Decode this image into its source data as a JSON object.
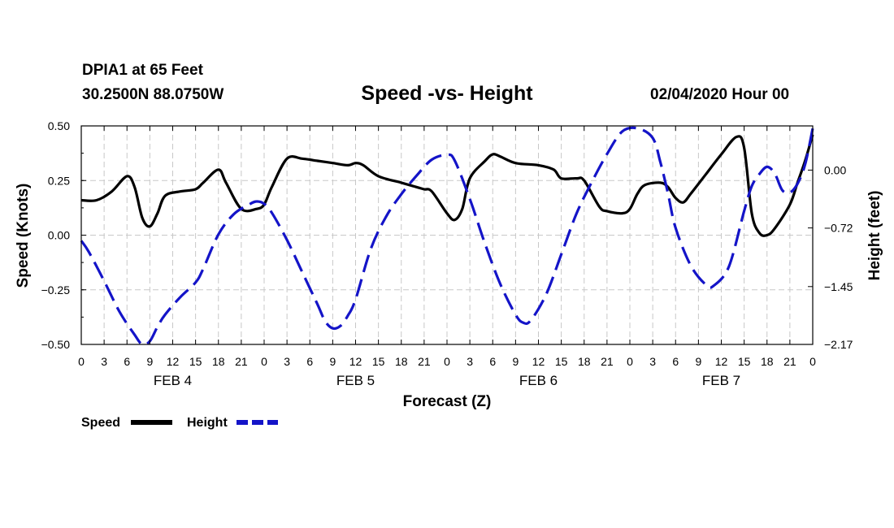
{
  "header": {
    "station": "DPIA1 at 65 Feet",
    "coords": "30.2500N 88.0750W",
    "date": "02/04/2020 Hour 00"
  },
  "chart_data": {
    "type": "line",
    "title": "Speed -vs- Height",
    "xlabel": "Forecast (Z)",
    "ylabel": "Speed (Knots)",
    "y2label": "Height (feet)",
    "x_unit": "forecast hour from 02/04/2020 00Z",
    "xlim": [
      0,
      96
    ],
    "ylim": [
      -0.5,
      0.5
    ],
    "y2lim": [
      -2.17,
      0.55
    ],
    "x_tick_labels": [
      "0",
      "3",
      "6",
      "9",
      "12",
      "15",
      "18",
      "21",
      "0",
      "3",
      "6",
      "9",
      "12",
      "15",
      "18",
      "21",
      "0",
      "3",
      "6",
      "9",
      "12",
      "15",
      "18",
      "21",
      "0",
      "3",
      "6",
      "9",
      "12",
      "15",
      "18",
      "21",
      "0"
    ],
    "y_ticks": [
      0.5,
      0.25,
      0.0,
      -0.25,
      -0.5
    ],
    "y_tick_labels": [
      "0.50",
      "0.25",
      "0.00",
      "−0.25",
      "−0.50"
    ],
    "y2_ticks": [
      0.0,
      -0.72,
      -1.45,
      -2.17
    ],
    "y2_tick_labels": [
      "0.00",
      "−0.72",
      "−1.45",
      "−2.17"
    ],
    "day_labels": [
      {
        "text": "FEB 4",
        "x": 12
      },
      {
        "text": "FEB 5",
        "x": 36
      },
      {
        "text": "FEB 6",
        "x": 60
      },
      {
        "text": "FEB 7",
        "x": 84
      }
    ],
    "grid": true,
    "series": [
      {
        "name": "Speed",
        "axis": "left",
        "color": "#000000",
        "style": "solid",
        "points": [
          [
            0,
            0.16
          ],
          [
            2,
            0.16
          ],
          [
            4,
            0.2
          ],
          [
            6,
            0.27
          ],
          [
            7,
            0.22
          ],
          [
            8,
            0.08
          ],
          [
            9,
            0.04
          ],
          [
            10,
            0.1
          ],
          [
            11,
            0.18
          ],
          [
            13,
            0.2
          ],
          [
            15,
            0.21
          ],
          [
            16,
            0.24
          ],
          [
            18,
            0.3
          ],
          [
            19,
            0.24
          ],
          [
            21,
            0.12
          ],
          [
            23,
            0.12
          ],
          [
            24,
            0.14
          ],
          [
            25,
            0.22
          ],
          [
            27,
            0.35
          ],
          [
            29,
            0.35
          ],
          [
            31,
            0.34
          ],
          [
            33,
            0.33
          ],
          [
            35,
            0.32
          ],
          [
            36,
            0.33
          ],
          [
            37,
            0.32
          ],
          [
            39,
            0.27
          ],
          [
            42,
            0.24
          ],
          [
            44,
            0.22
          ],
          [
            45,
            0.21
          ],
          [
            46,
            0.2
          ],
          [
            48,
            0.1
          ],
          [
            49,
            0.07
          ],
          [
            50,
            0.12
          ],
          [
            51,
            0.26
          ],
          [
            53,
            0.34
          ],
          [
            54,
            0.37
          ],
          [
            55,
            0.36
          ],
          [
            57,
            0.33
          ],
          [
            60,
            0.32
          ],
          [
            62,
            0.3
          ],
          [
            63,
            0.26
          ],
          [
            65,
            0.26
          ],
          [
            66,
            0.25
          ],
          [
            68,
            0.13
          ],
          [
            69,
            0.11
          ],
          [
            71,
            0.1
          ],
          [
            72,
            0.12
          ],
          [
            73,
            0.19
          ],
          [
            74,
            0.23
          ],
          [
            76,
            0.24
          ],
          [
            77,
            0.22
          ],
          [
            78,
            0.17
          ],
          [
            79,
            0.15
          ],
          [
            80,
            0.19
          ],
          [
            82,
            0.28
          ],
          [
            84,
            0.37
          ],
          [
            86,
            0.45
          ],
          [
            87,
            0.4
          ],
          [
            88,
            0.1
          ],
          [
            89,
            0.01
          ],
          [
            90,
            0.0
          ],
          [
            91,
            0.03
          ],
          [
            93,
            0.14
          ],
          [
            94,
            0.24
          ],
          [
            95,
            0.34
          ],
          [
            96,
            0.46
          ]
        ]
      },
      {
        "name": "Height",
        "axis": "right",
        "color": "#1414c8",
        "style": "dashed",
        "points": [
          [
            0,
            -0.88
          ],
          [
            1,
            -1.02
          ],
          [
            3,
            -1.38
          ],
          [
            5,
            -1.76
          ],
          [
            7,
            -2.05
          ],
          [
            8,
            -2.17
          ],
          [
            9,
            -2.13
          ],
          [
            10,
            -1.95
          ],
          [
            11,
            -1.8
          ],
          [
            13,
            -1.58
          ],
          [
            15,
            -1.4
          ],
          [
            16,
            -1.23
          ],
          [
            18,
            -0.8
          ],
          [
            20,
            -0.55
          ],
          [
            22,
            -0.43
          ],
          [
            23,
            -0.39
          ],
          [
            24,
            -0.42
          ],
          [
            25,
            -0.53
          ],
          [
            27,
            -0.87
          ],
          [
            29,
            -1.27
          ],
          [
            31,
            -1.67
          ],
          [
            32,
            -1.88
          ],
          [
            33,
            -1.97
          ],
          [
            34,
            -1.94
          ],
          [
            35,
            -1.81
          ],
          [
            36,
            -1.61
          ],
          [
            38,
            -0.98
          ],
          [
            40,
            -0.58
          ],
          [
            42,
            -0.3
          ],
          [
            44,
            -0.07
          ],
          [
            46,
            0.13
          ],
          [
            48,
            0.19
          ],
          [
            49,
            0.12
          ],
          [
            51,
            -0.36
          ],
          [
            53,
            -0.92
          ],
          [
            55,
            -1.42
          ],
          [
            57,
            -1.8
          ],
          [
            58,
            -1.9
          ],
          [
            59,
            -1.87
          ],
          [
            61,
            -1.55
          ],
          [
            63,
            -1.05
          ],
          [
            65,
            -0.54
          ],
          [
            67,
            -0.15
          ],
          [
            69,
            0.2
          ],
          [
            71,
            0.48
          ],
          [
            73,
            0.52
          ],
          [
            75,
            0.4
          ],
          [
            76,
            0.1
          ],
          [
            77,
            -0.29
          ],
          [
            78,
            -0.72
          ],
          [
            80,
            -1.19
          ],
          [
            82,
            -1.43
          ],
          [
            83,
            -1.44
          ],
          [
            85,
            -1.2
          ],
          [
            87,
            -0.51
          ],
          [
            88,
            -0.2
          ],
          [
            89,
            -0.05
          ],
          [
            90,
            0.04
          ],
          [
            91,
            -0.04
          ],
          [
            92,
            -0.25
          ],
          [
            93,
            -0.28
          ],
          [
            94,
            -0.17
          ],
          [
            95,
            0.07
          ],
          [
            96,
            0.52
          ]
        ]
      }
    ],
    "legend": [
      {
        "label": "Speed",
        "color": "#000000",
        "style": "solid"
      },
      {
        "label": "Height",
        "color": "#1414c8",
        "style": "dashed"
      }
    ],
    "legend_position": "bottom-left"
  }
}
